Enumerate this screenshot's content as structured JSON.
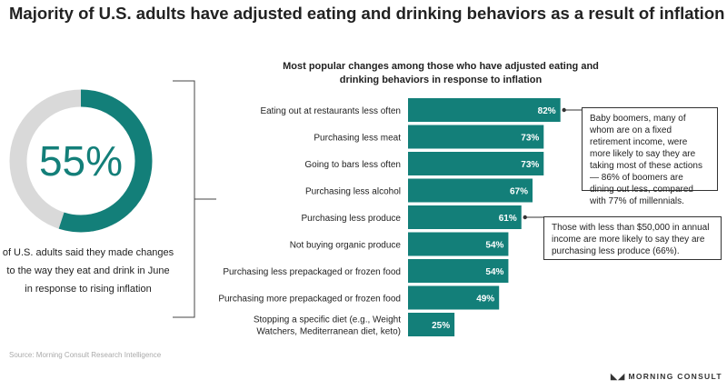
{
  "title": "Majority of U.S. adults have adjusted eating and drinking behaviors as a result of inflation",
  "donut": {
    "value": 55,
    "label": "55%",
    "caption": "of U.S. adults said they made changes to the way they eat and drink in June in response to rising inflation",
    "color_filled": "#137f79",
    "color_rest": "#d9d9d9"
  },
  "chart_data": {
    "type": "bar",
    "orientation": "horizontal",
    "title": "Most popular changes among those who have adjusted eating and drinking behaviors in response to inflation",
    "categories": [
      "Eating out at restaurants less often",
      "Purchasing less meat",
      "Going to bars less often",
      "Purchasing less alcohol",
      "Purchasing less produce",
      "Not buying organic produce",
      "Purchasing less prepackaged or frozen food",
      "Purchasing more prepackaged or frozen food",
      "Stopping a specific diet (e.g., Weight Watchers, Mediterranean diet, keto)"
    ],
    "category_lines": [
      [
        "Eating out at restaurants less often"
      ],
      [
        "Purchasing less meat"
      ],
      [
        "Going to bars less often"
      ],
      [
        "Purchasing less alcohol"
      ],
      [
        "Purchasing less produce"
      ],
      [
        "Not buying organic produce"
      ],
      [
        "Purchasing less prepackaged or frozen food"
      ],
      [
        "Purchasing more prepackaged or frozen food"
      ],
      [
        "Stopping a specific diet (e.g., Weight",
        "Watchers, Mediterranean diet, keto)"
      ]
    ],
    "values": [
      82,
      73,
      73,
      67,
      61,
      54,
      54,
      49,
      25
    ],
    "value_labels": [
      "82%",
      "73%",
      "73%",
      "67%",
      "61%",
      "54%",
      "54%",
      "49%",
      "25%"
    ],
    "bar_color": "#137f79",
    "xlim": [
      0,
      100
    ],
    "grid": false,
    "legend": "none"
  },
  "callouts": {
    "boomers": "Baby boomers, many of whom are on a fixed retirement income, were more likely to say they are taking most of these actions — 86% of boomers are dining out less, compared with 77% of millennials.",
    "income": "Those with less than $50,000 in annual income are more likely to say they are purchasing less produce (66%)."
  },
  "source": "Source: Morning Consult Research Intelligence",
  "brand": "MORNING CONSULT"
}
